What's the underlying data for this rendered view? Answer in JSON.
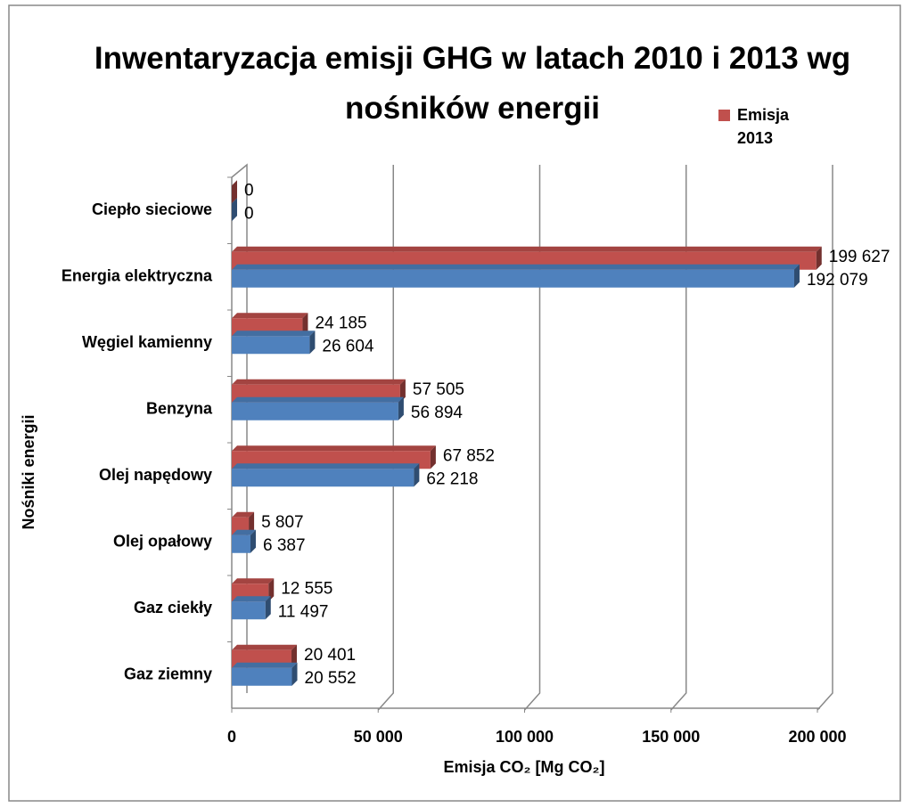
{
  "chart_data": {
    "type": "bar3d_horizontal",
    "title": "Inwentaryzacja emisji GHG w latach 2010 i 2013 wg nośników energii",
    "x_label": "Emisja CO₂ [Mg CO₂]",
    "y_label": "Nośniki energii",
    "categories": [
      "Ciepło sieciowe",
      "Energia elektryczna",
      "Węgiel kamienny",
      "Benzyna",
      "Olej napędowy",
      "Olej opałowy",
      "Gaz ciekły",
      "Gaz ziemny"
    ],
    "series": [
      {
        "name": "Emisja 2013",
        "color": "#c0504d",
        "values": [
          0,
          199627,
          24185,
          57505,
          67852,
          5807,
          12555,
          20401
        ],
        "value_labels": [
          "0",
          "199 627",
          "24 185",
          "57 505",
          "67 852",
          "5 807",
          "12 555",
          "20 401"
        ]
      },
      {
        "color": "#4f81bd",
        "values": [
          0,
          192079,
          26604,
          56894,
          62218,
          6387,
          11497,
          20552
        ],
        "value_labels": [
          "0",
          "192 079",
          "26 604",
          "56 894",
          "62 218",
          "6 387",
          "11 497",
          "20 552"
        ]
      }
    ],
    "xlim": [
      0,
      200000
    ],
    "xticks": [
      0,
      {
        "value": 50000,
        "label": "50 000"
      },
      {
        "value": 100000,
        "label": "100 000"
      },
      {
        "value": 150000,
        "label": "150 000"
      },
      {
        "value": 200000,
        "label": "200 000"
      }
    ],
    "grid": true,
    "legend": "top-right"
  }
}
